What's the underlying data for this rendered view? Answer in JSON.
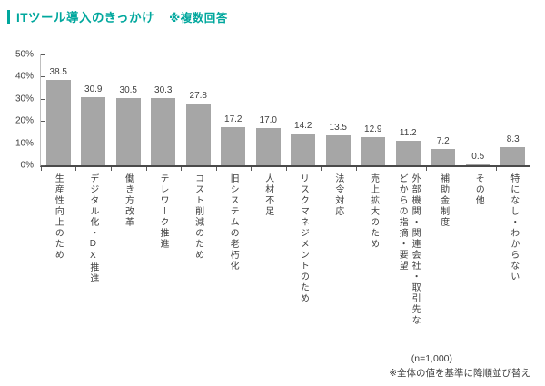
{
  "colors": {
    "accent": "#00a79d",
    "bar": "#a6a6a6",
    "axis": "#595959",
    "baseline": "#4a4a4a",
    "text": "#404040"
  },
  "chart_data": {
    "type": "bar",
    "title": "ITツール導入のきっかけ",
    "subtitle": "※複数回答",
    "categories": [
      "生産性向上のため",
      "デジタル化・DX推進",
      "働き方改革",
      "テレワーク推進",
      "コスト削減のため",
      "旧システムの老朽化",
      "人材不足",
      "リスクマネジメントのため",
      "法令対応",
      "売上拡大のため",
      "外部機関・関連会社・取引先な\nどからの指摘・要望",
      "補助金制度",
      "その他",
      "特になし・わからない"
    ],
    "values": [
      38.5,
      30.9,
      30.5,
      30.3,
      27.8,
      17.2,
      17.0,
      14.2,
      13.5,
      12.9,
      11.2,
      7.2,
      0.5,
      8.3
    ],
    "xlabel": "",
    "ylabel": "%",
    "ylim": [
      0,
      50
    ],
    "yticks": [
      "0%",
      "10%",
      "20%",
      "30%",
      "40%",
      "50%"
    ],
    "grid": false,
    "legend": null,
    "value_labels_shown": true,
    "sample_size": "(n=1,000)",
    "footnote": "※全体の値を基準に降順並び替え"
  }
}
